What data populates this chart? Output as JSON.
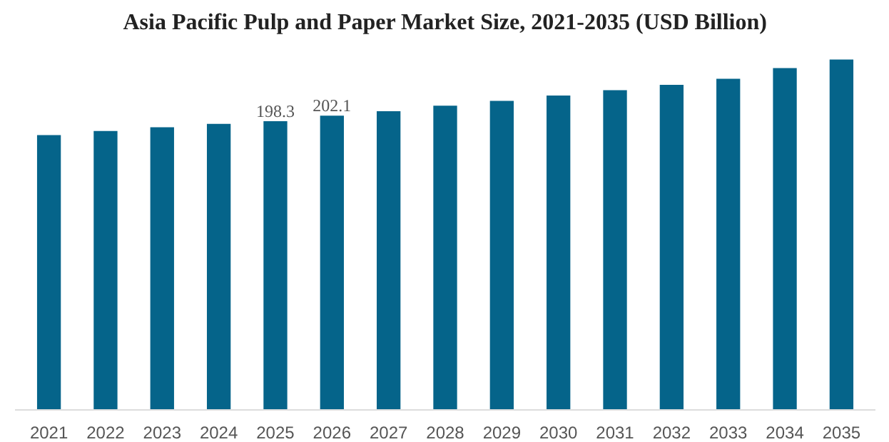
{
  "chart_data": {
    "type": "bar",
    "title": "Asia Pacific Pulp and Paper Market Size, 2021-2035 (USD Billion)",
    "categories": [
      "2021",
      "2022",
      "2023",
      "2024",
      "2025",
      "2026",
      "2027",
      "2028",
      "2029",
      "2030",
      "2031",
      "2032",
      "2033",
      "2034",
      "2035"
    ],
    "values": [
      188.7,
      191.6,
      194.1,
      196.5,
      198.3,
      202.1,
      205.2,
      208.9,
      212.2,
      215.9,
      219.6,
      223.3,
      227.4,
      234.8,
      240.6
    ],
    "value_labels": [
      null,
      null,
      null,
      null,
      "198.3",
      "202.1",
      null,
      null,
      null,
      null,
      null,
      null,
      null,
      null,
      null
    ],
    "color": "#05648a",
    "grid": false
  }
}
